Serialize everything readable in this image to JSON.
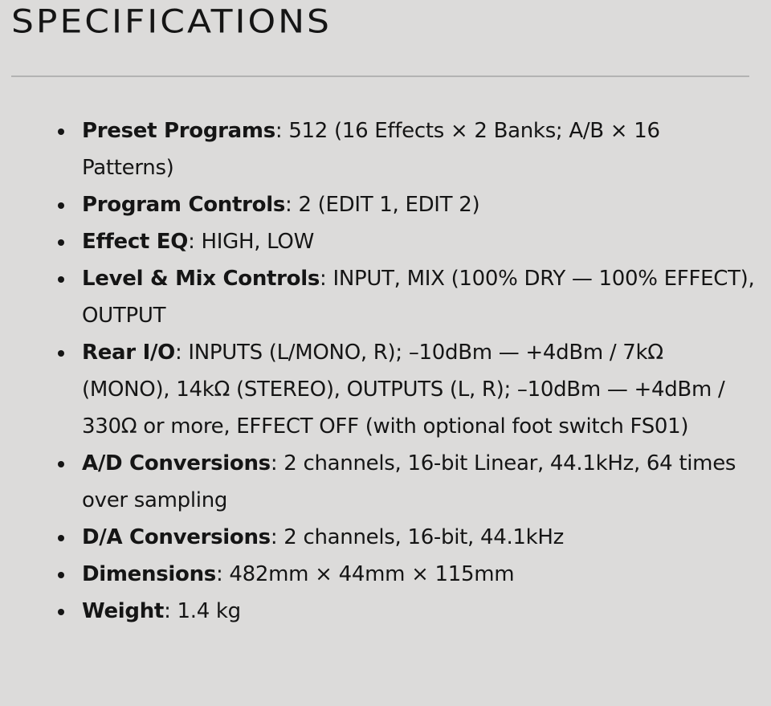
{
  "title": "SPECIFICATIONS",
  "specs": [
    {
      "label": "Preset Programs",
      "value": ": 512 (16 Effects × 2 Banks; A/B × 16 Patterns)"
    },
    {
      "label": "Program Controls",
      "value": ": 2 (EDIT 1, EDIT 2)"
    },
    {
      "label": "Effect EQ",
      "value": ": HIGH, LOW"
    },
    {
      "label": "Level & Mix Controls",
      "value": ": INPUT, MIX (100% DRY — 100% EFFECT), OUTPUT"
    },
    {
      "label": "Rear I/O",
      "value": ": INPUTS (L/MONO, R); –10dBm — +4dBm / 7kΩ (MONO), 14kΩ (STEREO), OUTPUTS (L, R); –10dBm — +4dBm / 330Ω or more, EFFECT OFF (with optional foot switch FS01)"
    },
    {
      "label": "A/D Conversions",
      "value": ": 2 channels, 16-bit Linear, 44.1kHz, 64 times over sampling"
    },
    {
      "label": "D/A Conversions",
      "value": ": 2 channels, 16-bit, 44.1kHz"
    },
    {
      "label": "Dimensions",
      "value": ": 482mm × 44mm × 115mm"
    },
    {
      "label": "Weight",
      "value": ": 1.4 kg"
    }
  ]
}
